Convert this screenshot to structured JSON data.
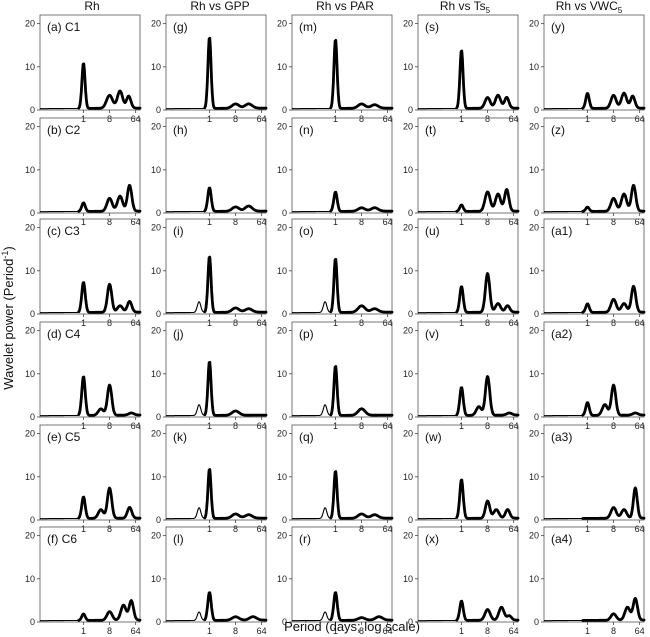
{
  "figure": {
    "column_headers": [
      {
        "text": "Rh",
        "sub": ""
      },
      {
        "text": "Rh vs GPP",
        "sub": ""
      },
      {
        "text": "Rh vs PAR",
        "sub": ""
      },
      {
        "text": "Rh vs Ts",
        "sub": "5"
      },
      {
        "text": "Rh vs VWC",
        "sub": "5"
      }
    ],
    "ylabel_main": "Wavelet power (Period",
    "ylabel_sup": "-1",
    "ylabel_tail": ")",
    "xlabel": "Period (days; log scale)"
  },
  "chart_data": {
    "type": "line",
    "x_scale": "log2",
    "x_ticks": [
      1,
      8,
      64
    ],
    "y_ticks": [
      0,
      10,
      20
    ],
    "ylim": [
      0,
      22
    ],
    "xlim_log2": [
      -5,
      6.5
    ],
    "panels": [
      {
        "label": "(a) C1",
        "peaks": [
          [
            0,
            10.5,
            0.18
          ],
          [
            3,
            3,
            0.35
          ],
          [
            4.2,
            4,
            0.3
          ],
          [
            5.2,
            2.8,
            0.25
          ]
        ]
      },
      {
        "label": "(g)",
        "peaks": [
          [
            0,
            16.5,
            0.18
          ],
          [
            3,
            1,
            0.4
          ],
          [
            4.5,
            1,
            0.4
          ]
        ]
      },
      {
        "label": "(m)",
        "peaks": [
          [
            0,
            16,
            0.18
          ],
          [
            3,
            1,
            0.4
          ],
          [
            4.5,
            0.8,
            0.4
          ]
        ]
      },
      {
        "label": "(s)",
        "peaks": [
          [
            0,
            13.5,
            0.18
          ],
          [
            3,
            2.5,
            0.3
          ],
          [
            4.2,
            3,
            0.3
          ],
          [
            5.2,
            2.5,
            0.25
          ]
        ]
      },
      {
        "label": "(y)",
        "peaks": [
          [
            0,
            3.5,
            0.2
          ],
          [
            3,
            3,
            0.3
          ],
          [
            4.2,
            3.5,
            0.3
          ],
          [
            5.2,
            2.8,
            0.25
          ]
        ]
      },
      {
        "label": "(b) C2",
        "peaks": [
          [
            0,
            2,
            0.2
          ],
          [
            3,
            3,
            0.3
          ],
          [
            4.2,
            3.5,
            0.3
          ],
          [
            5.3,
            6,
            0.25
          ]
        ]
      },
      {
        "label": "(h)",
        "peaks": [
          [
            0,
            5.5,
            0.2
          ],
          [
            3,
            1,
            0.4
          ],
          [
            4.5,
            1.2,
            0.4
          ]
        ]
      },
      {
        "label": "(n)",
        "peaks": [
          [
            0,
            4.5,
            0.2
          ],
          [
            3,
            0.8,
            0.4
          ],
          [
            4.5,
            0.8,
            0.4
          ]
        ]
      },
      {
        "label": "(t)",
        "peaks": [
          [
            0,
            1.5,
            0.2
          ],
          [
            3,
            4.5,
            0.3
          ],
          [
            4.2,
            4,
            0.3
          ],
          [
            5.2,
            5,
            0.25
          ]
        ]
      },
      {
        "label": "(z)",
        "peaks": [
          [
            0,
            1,
            0.2
          ],
          [
            3,
            3,
            0.3
          ],
          [
            4.2,
            4,
            0.3
          ],
          [
            5.3,
            6,
            0.25
          ]
        ]
      },
      {
        "label": "(c) C3",
        "peaks": [
          [
            0,
            7,
            0.2
          ],
          [
            3,
            6.5,
            0.25
          ],
          [
            4.2,
            1.5,
            0.3
          ],
          [
            5.3,
            2.5,
            0.25
          ]
        ]
      },
      {
        "label": "(i)",
        "peaks": [
          [
            -1.2,
            2.5,
            0.2
          ],
          [
            0,
            13,
            0.18
          ],
          [
            3,
            1,
            0.4
          ],
          [
            4.5,
            0.8,
            0.4
          ]
        ]
      },
      {
        "label": "(o)",
        "peaks": [
          [
            -1.2,
            2.5,
            0.2
          ],
          [
            0,
            12.5,
            0.18
          ],
          [
            3,
            1.5,
            0.4
          ],
          [
            4.5,
            0.8,
            0.4
          ]
        ]
      },
      {
        "label": "(u)",
        "peaks": [
          [
            0,
            6,
            0.2
          ],
          [
            3,
            9,
            0.25
          ],
          [
            4.2,
            2,
            0.3
          ],
          [
            5.3,
            1.5,
            0.25
          ]
        ]
      },
      {
        "label": "(a1)",
        "peaks": [
          [
            0,
            2,
            0.2
          ],
          [
            3,
            3,
            0.3
          ],
          [
            4.2,
            2,
            0.3
          ],
          [
            5.3,
            6,
            0.25
          ]
        ]
      },
      {
        "label": "(d) C4",
        "peaks": [
          [
            0,
            9,
            0.2
          ],
          [
            3,
            7,
            0.25
          ],
          [
            2,
            1.5,
            0.3
          ],
          [
            5.5,
            0.5,
            0.3
          ]
        ]
      },
      {
        "label": "(j)",
        "peaks": [
          [
            -1.2,
            2.5,
            0.2
          ],
          [
            0,
            12.5,
            0.18
          ],
          [
            3,
            1,
            0.4
          ]
        ]
      },
      {
        "label": "(p)",
        "peaks": [
          [
            -1.2,
            2.5,
            0.2
          ],
          [
            0,
            11.5,
            0.18
          ],
          [
            3,
            1.5,
            0.4
          ]
        ]
      },
      {
        "label": "(v)",
        "peaks": [
          [
            0,
            6.5,
            0.2
          ],
          [
            3,
            9,
            0.25
          ],
          [
            2,
            2,
            0.3
          ],
          [
            5.5,
            0.5,
            0.3
          ]
        ]
      },
      {
        "label": "(a2)",
        "peaks": [
          [
            0,
            3,
            0.2
          ],
          [
            3,
            7,
            0.25
          ],
          [
            2,
            2.5,
            0.3
          ],
          [
            5.5,
            0.5,
            0.3
          ]
        ]
      },
      {
        "label": "(e) C5",
        "peaks": [
          [
            0,
            5,
            0.2
          ],
          [
            3,
            7,
            0.25
          ],
          [
            2,
            2,
            0.3
          ],
          [
            5.3,
            2.5,
            0.25
          ]
        ]
      },
      {
        "label": "(k)",
        "peaks": [
          [
            -1.2,
            2.5,
            0.2
          ],
          [
            0,
            11.5,
            0.18
          ],
          [
            3,
            1,
            0.4
          ],
          [
            4.5,
            0.8,
            0.4
          ]
        ]
      },
      {
        "label": "(q)",
        "peaks": [
          [
            -1.2,
            2.5,
            0.2
          ],
          [
            0,
            11,
            0.18
          ],
          [
            3,
            1,
            0.4
          ],
          [
            4.5,
            0.8,
            0.4
          ]
        ]
      },
      {
        "label": "(w)",
        "peaks": [
          [
            0,
            9,
            0.2
          ],
          [
            3,
            4,
            0.25
          ],
          [
            4,
            2,
            0.3
          ],
          [
            5.3,
            2,
            0.25
          ]
        ]
      },
      {
        "label": "(a3)",
        "peaks": [
          [
            3,
            2.5,
            0.3
          ],
          [
            4.2,
            2,
            0.3
          ],
          [
            5.5,
            7,
            0.22
          ]
        ]
      },
      {
        "label": "(f) C6",
        "peaks": [
          [
            0,
            1.5,
            0.2
          ],
          [
            3,
            2,
            0.3
          ],
          [
            4.6,
            3.5,
            0.3
          ],
          [
            5.5,
            4.5,
            0.25
          ]
        ]
      },
      {
        "label": "(l)",
        "peaks": [
          [
            -1.2,
            2,
            0.2
          ],
          [
            0,
            6.5,
            0.2
          ],
          [
            3,
            0.8,
            0.4
          ],
          [
            5,
            0.8,
            0.4
          ]
        ]
      },
      {
        "label": "(r)",
        "peaks": [
          [
            -1.2,
            2,
            0.2
          ],
          [
            0,
            6.5,
            0.2
          ],
          [
            3,
            0.6,
            0.4
          ],
          [
            5,
            0.8,
            0.4
          ]
        ]
      },
      {
        "label": "(x)",
        "peaks": [
          [
            0,
            4.5,
            0.2
          ],
          [
            3,
            2.5,
            0.3
          ],
          [
            4.6,
            3,
            0.3
          ],
          [
            5.5,
            1,
            0.25
          ]
        ]
      },
      {
        "label": "(a4)",
        "peaks": [
          [
            3,
            1.5,
            0.3
          ],
          [
            4.6,
            3,
            0.3
          ],
          [
            5.5,
            5,
            0.25
          ]
        ]
      }
    ]
  }
}
